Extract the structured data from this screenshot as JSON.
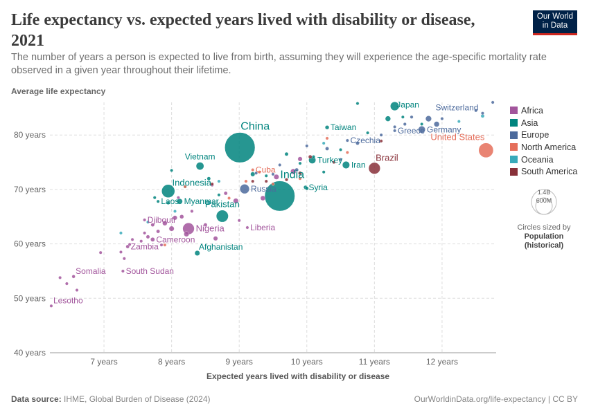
{
  "header": {
    "title": "Life expectancy vs. expected years lived with disability or disease, 2021",
    "subtitle": "The number of years a person is expected to live from birth, assuming they will experience the age-specific mortality rate observed in a given year throughout their lifetime.",
    "logo_line1": "Our World",
    "logo_line2": "in Data"
  },
  "footer": {
    "source_label": "Data source:",
    "source": "IHME, Global Burden of Disease (2024)",
    "url": "OurWorldinData.org/life-expectancy | CC BY"
  },
  "legend": {
    "items": [
      {
        "label": "Africa",
        "color": "#a2559c"
      },
      {
        "label": "Asia",
        "color": "#00847e"
      },
      {
        "label": "Europe",
        "color": "#4c6a9c"
      },
      {
        "label": "North America",
        "color": "#e56e5a"
      },
      {
        "label": "Oceania",
        "color": "#38aaba"
      },
      {
        "label": "South America",
        "color": "#883039"
      }
    ],
    "size_max": "1.4B",
    "size_mid": "600M",
    "size_note": "Circles sized by",
    "size_var": "Population",
    "size_var2": "(historical)"
  },
  "chart_data": {
    "type": "scatter",
    "ylabel": "Average life expectancy",
    "xlabel": "Expected years lived with disability or disease",
    "xlim": [
      6.2,
      12.8
    ],
    "ylim": [
      40,
      86
    ],
    "xticks": [
      {
        "v": 7,
        "label": "7 years"
      },
      {
        "v": 8,
        "label": "8 years"
      },
      {
        "v": 9,
        "label": "9 years"
      },
      {
        "v": 10,
        "label": "10 years"
      },
      {
        "v": 11,
        "label": "11 years"
      },
      {
        "v": 12,
        "label": "12 years"
      }
    ],
    "yticks": [
      {
        "v": 40,
        "label": "40 years"
      },
      {
        "v": 50,
        "label": "50 years"
      },
      {
        "v": 60,
        "label": "60 years"
      },
      {
        "v": 70,
        "label": "70 years"
      },
      {
        "v": 80,
        "label": "80 years"
      }
    ],
    "labeled_points": [
      {
        "name": "China",
        "region": "Asia",
        "x": 9.01,
        "y": 77.7,
        "pop": 1.42
      },
      {
        "name": "India",
        "region": "Asia",
        "x": 9.6,
        "y": 68.8,
        "pop": 1.41
      },
      {
        "name": "United States",
        "region": "North America",
        "x": 12.65,
        "y": 77.2,
        "pop": 0.34
      },
      {
        "name": "Brazil",
        "region": "South America",
        "x": 11.0,
        "y": 73.9,
        "pop": 0.214
      },
      {
        "name": "Indonesia",
        "region": "Asia",
        "x": 7.95,
        "y": 69.7,
        "pop": 0.274
      },
      {
        "name": "Pakistan",
        "region": "Asia",
        "x": 8.75,
        "y": 65.1,
        "pop": 0.23
      },
      {
        "name": "Nigeria",
        "region": "Africa",
        "x": 8.25,
        "y": 62.8,
        "pop": 0.214
      },
      {
        "name": "Russia",
        "region": "Europe",
        "x": 9.08,
        "y": 70.1,
        "pop": 0.145
      },
      {
        "name": "Japan",
        "region": "Asia",
        "x": 11.3,
        "y": 85.3,
        "pop": 0.125
      },
      {
        "name": "Germany",
        "region": "Europe",
        "x": 11.7,
        "y": 81.0,
        "pop": 0.083
      },
      {
        "name": "Vietnam",
        "region": "Asia",
        "x": 8.42,
        "y": 74.3,
        "pop": 0.098
      },
      {
        "name": "Myanmar",
        "region": "Asia",
        "x": 8.12,
        "y": 67.8,
        "pop": 0.054
      },
      {
        "name": "Afghanistan",
        "region": "Asia",
        "x": 8.38,
        "y": 58.3,
        "pop": 0.04
      },
      {
        "name": "Turkey",
        "region": "Asia",
        "x": 10.08,
        "y": 75.4,
        "pop": 0.085
      },
      {
        "name": "Iran",
        "region": "Asia",
        "x": 10.58,
        "y": 74.5,
        "pop": 0.088
      },
      {
        "name": "Syria",
        "region": "Asia",
        "x": 9.98,
        "y": 70.4,
        "pop": 0.021
      },
      {
        "name": "Taiwan",
        "region": "Asia",
        "x": 10.3,
        "y": 81.4,
        "pop": 0.024
      },
      {
        "name": "Laos",
        "region": "Asia",
        "x": 7.8,
        "y": 67.8,
        "pop": 0.007
      },
      {
        "name": "Czechia",
        "region": "Europe",
        "x": 10.6,
        "y": 79.0,
        "pop": 0.011
      },
      {
        "name": "Greece",
        "region": "Europe",
        "x": 11.3,
        "y": 80.8,
        "pop": 0.01
      },
      {
        "name": "Switzerland",
        "region": "Europe",
        "x": 12.6,
        "y": 84.0,
        "pop": 0.009
      },
      {
        "name": "Cuba",
        "region": "North America",
        "x": 9.2,
        "y": 73.6,
        "pop": 0.011
      },
      {
        "name": "Liberia",
        "region": "Africa",
        "x": 9.12,
        "y": 63.0,
        "pop": 0.005
      },
      {
        "name": "Djibouti",
        "region": "Africa",
        "x": 7.6,
        "y": 64.4,
        "pop": 0.001
      },
      {
        "name": "Cameroon",
        "region": "Africa",
        "x": 7.72,
        "y": 60.8,
        "pop": 0.027
      },
      {
        "name": "Zambia",
        "region": "Africa",
        "x": 7.35,
        "y": 59.5,
        "pop": 0.019
      },
      {
        "name": "South Sudan",
        "region": "Africa",
        "x": 7.28,
        "y": 55.0,
        "pop": 0.011
      },
      {
        "name": "Somalia",
        "region": "Africa",
        "x": 6.55,
        "y": 54.0,
        "pop": 0.017
      },
      {
        "name": "Lesotho",
        "region": "Africa",
        "x": 6.22,
        "y": 48.6,
        "pop": 0.002
      }
    ],
    "points": [
      {
        "region": "Africa",
        "x": 6.6,
        "y": 51.5,
        "pop": 0.01
      },
      {
        "region": "Africa",
        "x": 6.45,
        "y": 52.7,
        "pop": 0.01
      },
      {
        "region": "Africa",
        "x": 6.35,
        "y": 53.8,
        "pop": 0.01
      },
      {
        "region": "Africa",
        "x": 6.95,
        "y": 58.4,
        "pop": 0.01
      },
      {
        "region": "Africa",
        "x": 7.25,
        "y": 58.5,
        "pop": 0.01
      },
      {
        "region": "Africa",
        "x": 7.38,
        "y": 59.9,
        "pop": 0.012
      },
      {
        "region": "Africa",
        "x": 7.42,
        "y": 60.8,
        "pop": 0.01
      },
      {
        "region": "Africa",
        "x": 7.55,
        "y": 60.5,
        "pop": 0.01
      },
      {
        "region": "Africa",
        "x": 7.65,
        "y": 61.3,
        "pop": 0.02
      },
      {
        "region": "Africa",
        "x": 7.8,
        "y": 62.3,
        "pop": 0.02
      },
      {
        "region": "Africa",
        "x": 7.9,
        "y": 63.8,
        "pop": 0.035
      },
      {
        "region": "Africa",
        "x": 8.0,
        "y": 62.8,
        "pop": 0.04
      },
      {
        "region": "Africa",
        "x": 8.05,
        "y": 64.8,
        "pop": 0.03
      },
      {
        "region": "Africa",
        "x": 8.15,
        "y": 65.0,
        "pop": 0.025
      },
      {
        "region": "Africa",
        "x": 8.22,
        "y": 61.8,
        "pop": 0.04
      },
      {
        "region": "Africa",
        "x": 8.3,
        "y": 66.0,
        "pop": 0.015
      },
      {
        "region": "Africa",
        "x": 8.5,
        "y": 63.5,
        "pop": 0.02
      },
      {
        "region": "Africa",
        "x": 8.65,
        "y": 61.0,
        "pop": 0.03
      },
      {
        "region": "Africa",
        "x": 8.95,
        "y": 67.9,
        "pop": 0.04
      },
      {
        "region": "Africa",
        "x": 8.8,
        "y": 69.3,
        "pop": 0.02
      },
      {
        "region": "Africa",
        "x": 9.0,
        "y": 64.3,
        "pop": 0.01
      },
      {
        "region": "Africa",
        "x": 9.35,
        "y": 68.4,
        "pop": 0.035
      },
      {
        "region": "Africa",
        "x": 9.55,
        "y": 72.3,
        "pop": 0.04
      },
      {
        "region": "Africa",
        "x": 9.8,
        "y": 73.3,
        "pop": 0.045
      },
      {
        "region": "Africa",
        "x": 9.9,
        "y": 75.6,
        "pop": 0.03
      },
      {
        "region": "Africa",
        "x": 7.85,
        "y": 59.8,
        "pop": 0.01
      },
      {
        "region": "Africa",
        "x": 8.1,
        "y": 68.5,
        "pop": 0.01
      },
      {
        "region": "Africa",
        "x": 7.3,
        "y": 57.3,
        "pop": 0.01
      },
      {
        "region": "Africa",
        "x": 7.6,
        "y": 62.0,
        "pop": 0.01
      },
      {
        "region": "Africa",
        "x": 8.6,
        "y": 70.8,
        "pop": 0.01
      },
      {
        "region": "Africa",
        "x": 7.72,
        "y": 63.5,
        "pop": 0.02
      },
      {
        "region": "Asia",
        "x": 8.0,
        "y": 73.5,
        "pop": 0.01
      },
      {
        "region": "Asia",
        "x": 8.2,
        "y": 70.5,
        "pop": 0.01
      },
      {
        "region": "Asia",
        "x": 8.55,
        "y": 72.0,
        "pop": 0.02
      },
      {
        "region": "Asia",
        "x": 8.7,
        "y": 69.0,
        "pop": 0.01
      },
      {
        "region": "Asia",
        "x": 9.2,
        "y": 72.8,
        "pop": 0.03
      },
      {
        "region": "Asia",
        "x": 9.4,
        "y": 72.5,
        "pop": 0.01
      },
      {
        "region": "Asia",
        "x": 9.7,
        "y": 76.5,
        "pop": 0.02
      },
      {
        "region": "Asia",
        "x": 9.9,
        "y": 74.8,
        "pop": 0.01
      },
      {
        "region": "Asia",
        "x": 10.0,
        "y": 70.2,
        "pop": 0.02
      },
      {
        "region": "Asia",
        "x": 10.1,
        "y": 76.0,
        "pop": 0.015
      },
      {
        "region": "Asia",
        "x": 10.25,
        "y": 73.2,
        "pop": 0.01
      },
      {
        "region": "Asia",
        "x": 10.5,
        "y": 77.3,
        "pop": 0.01
      },
      {
        "region": "Asia",
        "x": 10.9,
        "y": 80.4,
        "pop": 0.01
      },
      {
        "region": "Asia",
        "x": 11.2,
        "y": 83.0,
        "pop": 0.05
      },
      {
        "region": "Asia",
        "x": 11.42,
        "y": 83.3,
        "pop": 0.01
      },
      {
        "region": "Asia",
        "x": 10.75,
        "y": 85.8,
        "pop": 0.01
      },
      {
        "region": "Asia",
        "x": 11.7,
        "y": 82.0,
        "pop": 0.01
      },
      {
        "region": "Asia",
        "x": 7.95,
        "y": 67.5,
        "pop": 0.01
      },
      {
        "region": "Asia",
        "x": 7.75,
        "y": 68.5,
        "pop": 0.01
      },
      {
        "region": "Europe",
        "x": 9.6,
        "y": 74.5,
        "pop": 0.01
      },
      {
        "region": "Europe",
        "x": 9.85,
        "y": 73.6,
        "pop": 0.02
      },
      {
        "region": "Europe",
        "x": 10.0,
        "y": 78.0,
        "pop": 0.01
      },
      {
        "region": "Europe",
        "x": 10.3,
        "y": 77.5,
        "pop": 0.02
      },
      {
        "region": "Europe",
        "x": 10.75,
        "y": 78.5,
        "pop": 0.02
      },
      {
        "region": "Europe",
        "x": 11.1,
        "y": 80.0,
        "pop": 0.01
      },
      {
        "region": "Europe",
        "x": 11.45,
        "y": 82.0,
        "pop": 0.015
      },
      {
        "region": "Europe",
        "x": 11.55,
        "y": 83.3,
        "pop": 0.015
      },
      {
        "region": "Europe",
        "x": 11.8,
        "y": 83.0,
        "pop": 0.06
      },
      {
        "region": "Europe",
        "x": 11.92,
        "y": 82.0,
        "pop": 0.05
      },
      {
        "region": "Europe",
        "x": 12.0,
        "y": 83.0,
        "pop": 0.01
      },
      {
        "region": "Europe",
        "x": 12.5,
        "y": 84.5,
        "pop": 0.01
      },
      {
        "region": "Europe",
        "x": 12.75,
        "y": 86.0,
        "pop": 0.01
      },
      {
        "region": "Europe",
        "x": 11.3,
        "y": 81.5,
        "pop": 0.01
      },
      {
        "region": "Europe",
        "x": 9.25,
        "y": 73.0,
        "pop": 0.01
      },
      {
        "region": "Europe",
        "x": 9.5,
        "y": 72.8,
        "pop": 0.01
      },
      {
        "region": "Europe",
        "x": 10.5,
        "y": 75.5,
        "pop": 0.01
      },
      {
        "region": "North America",
        "x": 8.2,
        "y": 70.5,
        "pop": 0.01
      },
      {
        "region": "North America",
        "x": 8.85,
        "y": 68.4,
        "pop": 0.01
      },
      {
        "region": "North America",
        "x": 9.1,
        "y": 71.5,
        "pop": 0.01
      },
      {
        "region": "North America",
        "x": 9.5,
        "y": 71.0,
        "pop": 0.01
      },
      {
        "region": "North America",
        "x": 9.9,
        "y": 72.0,
        "pop": 0.01
      },
      {
        "region": "North America",
        "x": 10.3,
        "y": 79.4,
        "pop": 0.01
      },
      {
        "region": "North America",
        "x": 10.6,
        "y": 76.8,
        "pop": 0.01
      },
      {
        "region": "North America",
        "x": 7.9,
        "y": 59.8,
        "pop": 0.01
      },
      {
        "region": "North America",
        "x": 9.3,
        "y": 73.2,
        "pop": 0.01
      },
      {
        "region": "Oceania",
        "x": 7.25,
        "y": 62.0,
        "pop": 0.01
      },
      {
        "region": "Oceania",
        "x": 7.65,
        "y": 64.0,
        "pop": 0.01
      },
      {
        "region": "Oceania",
        "x": 8.05,
        "y": 66.0,
        "pop": 0.01
      },
      {
        "region": "Oceania",
        "x": 8.55,
        "y": 67.5,
        "pop": 0.01
      },
      {
        "region": "Oceania",
        "x": 8.7,
        "y": 71.5,
        "pop": 0.01
      },
      {
        "region": "Oceania",
        "x": 10.25,
        "y": 78.5,
        "pop": 0.01
      },
      {
        "region": "Oceania",
        "x": 12.25,
        "y": 82.5,
        "pop": 0.01
      },
      {
        "region": "Oceania",
        "x": 12.6,
        "y": 83.5,
        "pop": 0.02
      },
      {
        "region": "South America",
        "x": 8.6,
        "y": 71.0,
        "pop": 0.01
      },
      {
        "region": "South America",
        "x": 9.4,
        "y": 71.5,
        "pop": 0.012
      },
      {
        "region": "South America",
        "x": 9.7,
        "y": 71.8,
        "pop": 0.015
      },
      {
        "region": "South America",
        "x": 9.9,
        "y": 73.0,
        "pop": 0.02
      },
      {
        "region": "South America",
        "x": 10.05,
        "y": 76.0,
        "pop": 0.02
      },
      {
        "region": "South America",
        "x": 11.1,
        "y": 78.9,
        "pop": 0.01
      },
      {
        "region": "South America",
        "x": 9.2,
        "y": 71.5,
        "pop": 0.01
      },
      {
        "region": "South America",
        "x": 10.4,
        "y": 75.0,
        "pop": 0.01
      }
    ]
  }
}
